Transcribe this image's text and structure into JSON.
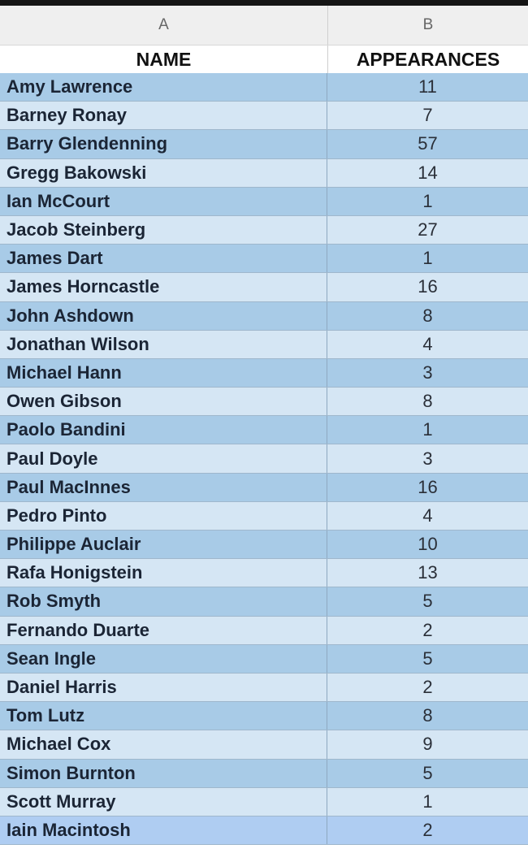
{
  "columns": {
    "a": "A",
    "b": "B"
  },
  "headers": {
    "name": "NAME",
    "appearances": "APPEARANCES"
  },
  "colors": {
    "row_dark": "#a8cbe7",
    "row_light": "#d5e6f4",
    "row_selected": "#afcdf2"
  },
  "rows": [
    {
      "name": "Amy Lawrence",
      "appearances": "11"
    },
    {
      "name": "Barney Ronay",
      "appearances": "7"
    },
    {
      "name": "Barry Glendenning",
      "appearances": "57"
    },
    {
      "name": "Gregg Bakowski",
      "appearances": "14"
    },
    {
      "name": "Ian McCourt",
      "appearances": "1"
    },
    {
      "name": "Jacob Steinberg",
      "appearances": "27"
    },
    {
      "name": "James Dart",
      "appearances": "1"
    },
    {
      "name": "James Horncastle",
      "appearances": "16"
    },
    {
      "name": "John Ashdown",
      "appearances": "8"
    },
    {
      "name": "Jonathan Wilson",
      "appearances": "4"
    },
    {
      "name": "Michael Hann",
      "appearances": "3"
    },
    {
      "name": "Owen Gibson",
      "appearances": "8"
    },
    {
      "name": "Paolo Bandini",
      "appearances": "1"
    },
    {
      "name": "Paul Doyle",
      "appearances": "3"
    },
    {
      "name": "Paul MacInnes",
      "appearances": "16"
    },
    {
      "name": "Pedro Pinto",
      "appearances": "4"
    },
    {
      "name": "Philippe Auclair",
      "appearances": "10"
    },
    {
      "name": "Rafa Honigstein",
      "appearances": "13"
    },
    {
      "name": "Rob Smyth",
      "appearances": "5"
    },
    {
      "name": "Fernando Duarte",
      "appearances": "2"
    },
    {
      "name": "Sean Ingle",
      "appearances": "5"
    },
    {
      "name": "Daniel Harris",
      "appearances": "2"
    },
    {
      "name": "Tom Lutz",
      "appearances": "8"
    },
    {
      "name": "Michael Cox",
      "appearances": "9"
    },
    {
      "name": "Simon Burnton",
      "appearances": "5"
    },
    {
      "name": "Scott Murray",
      "appearances": "1"
    },
    {
      "name": "Iain Macintosh",
      "appearances": "2"
    }
  ]
}
